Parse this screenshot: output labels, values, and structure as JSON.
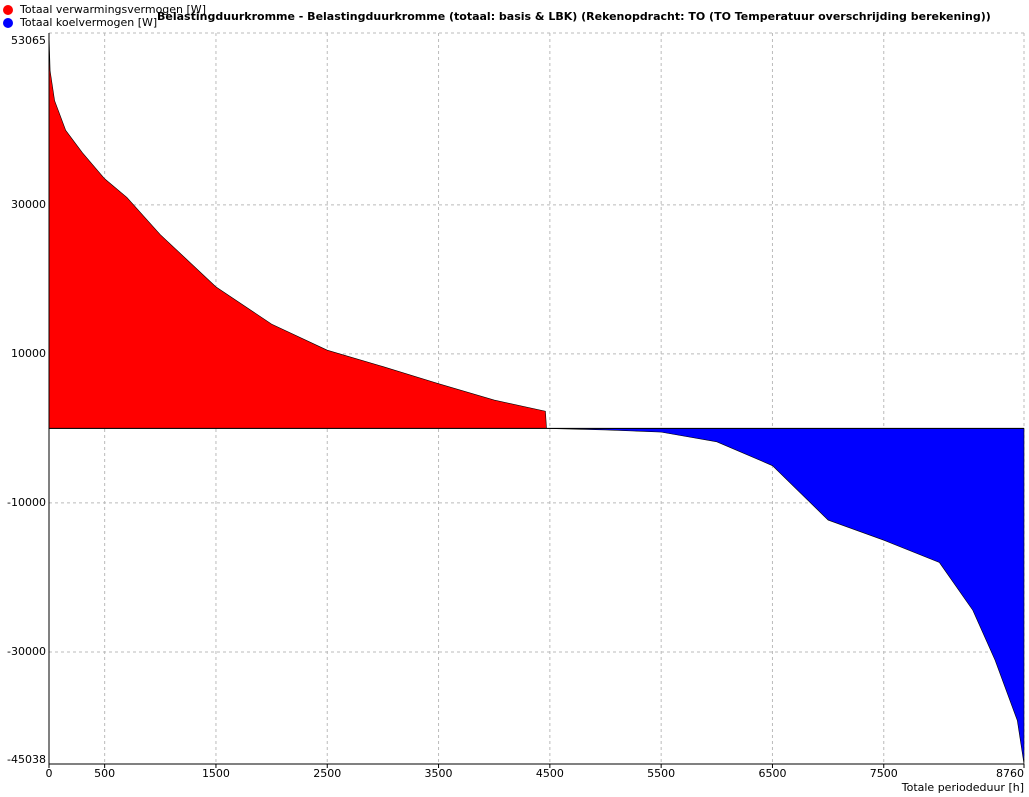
{
  "chart_data": {
    "type": "area",
    "title": "Belastingduurkromme - Belastingduurkromme (totaal: basis & LBK) (Rekenopdracht: TO (TO Temperatuur overschrijding berekening))",
    "x_label": "Totale periodeduur [h]",
    "x": [
      0,
      10,
      50,
      150,
      300,
      500,
      700,
      1000,
      1500,
      2000,
      2500,
      3000,
      3500,
      4000,
      4460,
      4470,
      5000,
      5500,
      6000,
      6500,
      7000,
      7500,
      8000,
      8300,
      8500,
      8700,
      8760
    ],
    "series": [
      {
        "name": "Totaal verwarmingsvermogen [W]",
        "color": "#ff0000",
        "values": [
          53065,
          48000,
          44000,
          40000,
          37000,
          33500,
          31000,
          26000,
          19000,
          14000,
          10500,
          8300,
          6000,
          3800,
          2300,
          0,
          null,
          null,
          null,
          null,
          null,
          null,
          null,
          null,
          null,
          null,
          null
        ]
      },
      {
        "name": "Totaal koelvermogen [W]",
        "color": "#0000ff",
        "values": [
          null,
          null,
          null,
          null,
          null,
          null,
          null,
          null,
          null,
          null,
          null,
          null,
          null,
          null,
          null,
          0,
          -200,
          -500,
          -1800,
          -5000,
          -12300,
          -15000,
          -18000,
          -24400,
          -31100,
          -39200,
          -45038
        ]
      }
    ],
    "xlim": [
      0,
      8760
    ],
    "ylim": [
      -45038,
      53065
    ],
    "xticks": [
      0,
      500,
      1500,
      2500,
      3500,
      4500,
      5500,
      6500,
      7500,
      8760
    ],
    "yticks": [
      53065,
      30000,
      10000,
      -10000,
      -30000,
      -45038
    ],
    "grid": true,
    "legend": "top-left"
  }
}
